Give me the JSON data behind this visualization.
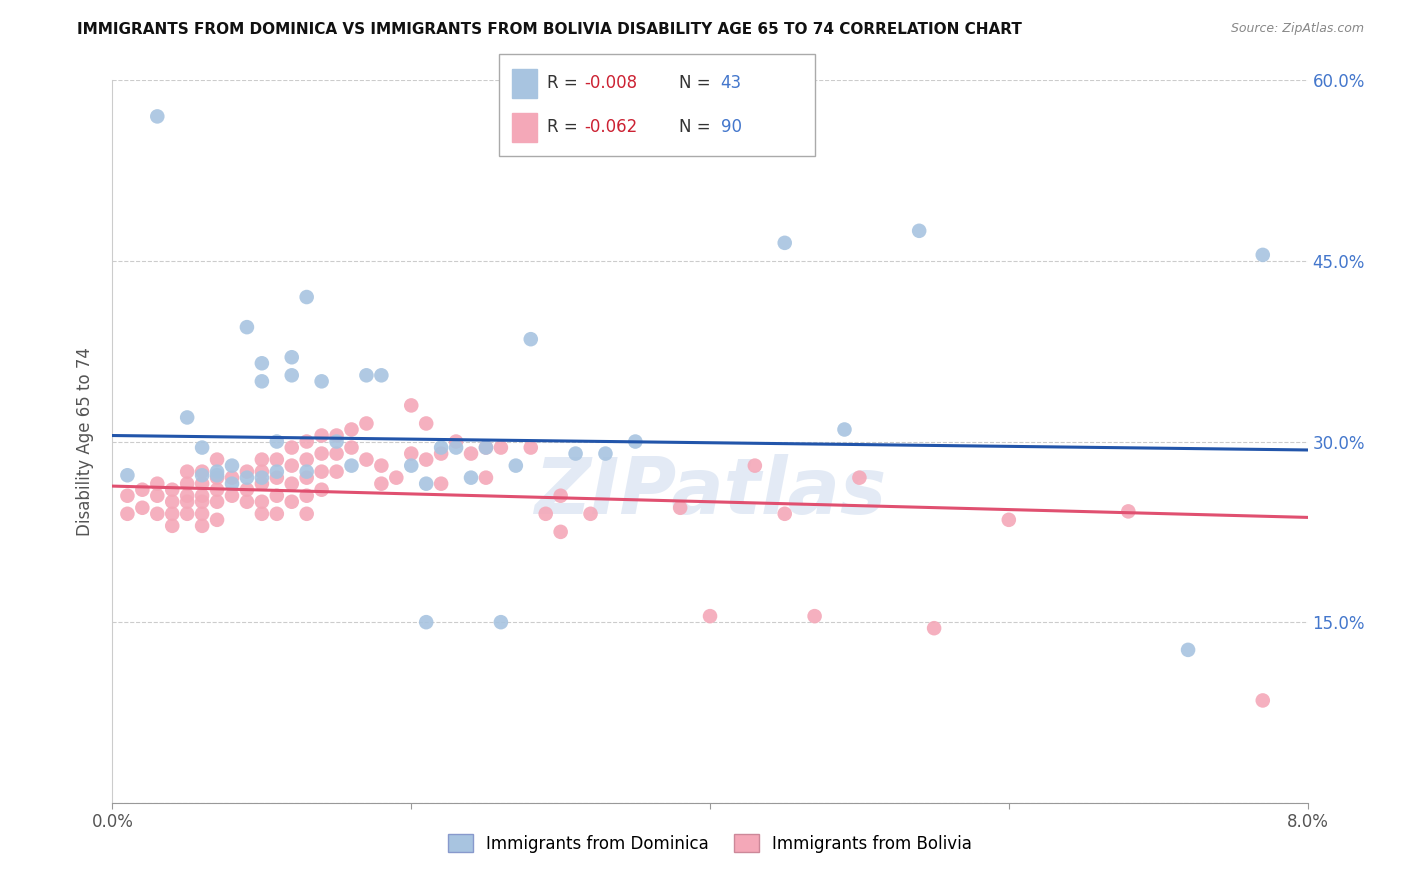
{
  "title": "IMMIGRANTS FROM DOMINICA VS IMMIGRANTS FROM BOLIVIA DISABILITY AGE 65 TO 74 CORRELATION CHART",
  "source": "Source: ZipAtlas.com",
  "ylabel": "Disability Age 65 to 74",
  "xlim": [
    0.0,
    0.08
  ],
  "ylim": [
    0.0,
    0.6
  ],
  "dominica_color": "#a8c4e0",
  "bolivia_color": "#f4a8b8",
  "dominica_line_color": "#2255aa",
  "bolivia_line_color": "#e05070",
  "dominica_R": "-0.008",
  "dominica_N": "43",
  "bolivia_R": "-0.062",
  "bolivia_N": "90",
  "legend_label_dominica": "Immigrants from Dominica",
  "legend_label_bolivia": "Immigrants from Bolivia",
  "watermark": "ZIPatlas",
  "dominica_x": [
    0.001,
    0.003,
    0.005,
    0.006,
    0.006,
    0.007,
    0.007,
    0.008,
    0.008,
    0.009,
    0.009,
    0.01,
    0.01,
    0.01,
    0.011,
    0.011,
    0.012,
    0.012,
    0.013,
    0.013,
    0.014,
    0.015,
    0.016,
    0.017,
    0.018,
    0.02,
    0.021,
    0.021,
    0.022,
    0.023,
    0.024,
    0.025,
    0.026,
    0.027,
    0.028,
    0.031,
    0.033,
    0.035,
    0.045,
    0.049,
    0.054,
    0.072,
    0.077
  ],
  "dominica_y": [
    0.272,
    0.57,
    0.32,
    0.295,
    0.272,
    0.275,
    0.272,
    0.28,
    0.265,
    0.395,
    0.27,
    0.365,
    0.35,
    0.27,
    0.3,
    0.275,
    0.37,
    0.355,
    0.42,
    0.275,
    0.35,
    0.3,
    0.28,
    0.355,
    0.355,
    0.28,
    0.265,
    0.15,
    0.295,
    0.295,
    0.27,
    0.295,
    0.15,
    0.28,
    0.385,
    0.29,
    0.29,
    0.3,
    0.465,
    0.31,
    0.475,
    0.127,
    0.455
  ],
  "bolivia_x": [
    0.001,
    0.001,
    0.002,
    0.002,
    0.003,
    0.003,
    0.003,
    0.004,
    0.004,
    0.004,
    0.004,
    0.005,
    0.005,
    0.005,
    0.005,
    0.005,
    0.006,
    0.006,
    0.006,
    0.006,
    0.006,
    0.006,
    0.007,
    0.007,
    0.007,
    0.007,
    0.007,
    0.008,
    0.008,
    0.009,
    0.009,
    0.009,
    0.01,
    0.01,
    0.01,
    0.01,
    0.01,
    0.011,
    0.011,
    0.011,
    0.011,
    0.012,
    0.012,
    0.012,
    0.012,
    0.013,
    0.013,
    0.013,
    0.013,
    0.013,
    0.014,
    0.014,
    0.014,
    0.014,
    0.015,
    0.015,
    0.015,
    0.016,
    0.016,
    0.017,
    0.017,
    0.018,
    0.018,
    0.019,
    0.02,
    0.02,
    0.021,
    0.021,
    0.022,
    0.022,
    0.023,
    0.024,
    0.025,
    0.025,
    0.026,
    0.028,
    0.029,
    0.03,
    0.03,
    0.032,
    0.038,
    0.04,
    0.043,
    0.045,
    0.047,
    0.05,
    0.055,
    0.06,
    0.068,
    0.077
  ],
  "bolivia_y": [
    0.255,
    0.24,
    0.26,
    0.245,
    0.265,
    0.255,
    0.24,
    0.26,
    0.25,
    0.24,
    0.23,
    0.275,
    0.265,
    0.255,
    0.25,
    0.24,
    0.275,
    0.265,
    0.255,
    0.25,
    0.24,
    0.23,
    0.285,
    0.27,
    0.26,
    0.25,
    0.235,
    0.27,
    0.255,
    0.275,
    0.26,
    0.25,
    0.285,
    0.275,
    0.265,
    0.25,
    0.24,
    0.285,
    0.27,
    0.255,
    0.24,
    0.295,
    0.28,
    0.265,
    0.25,
    0.3,
    0.285,
    0.27,
    0.255,
    0.24,
    0.305,
    0.29,
    0.275,
    0.26,
    0.305,
    0.29,
    0.275,
    0.31,
    0.295,
    0.315,
    0.285,
    0.28,
    0.265,
    0.27,
    0.33,
    0.29,
    0.315,
    0.285,
    0.29,
    0.265,
    0.3,
    0.29,
    0.295,
    0.27,
    0.295,
    0.295,
    0.24,
    0.255,
    0.225,
    0.24,
    0.245,
    0.155,
    0.28,
    0.24,
    0.155,
    0.27,
    0.145,
    0.235,
    0.242,
    0.085
  ],
  "dom_trend_x0": 0.0,
  "dom_trend_x1": 0.08,
  "dom_trend_y0": 0.305,
  "dom_trend_y1": 0.293,
  "bol_trend_x0": 0.0,
  "bol_trend_x1": 0.08,
  "bol_trend_y0": 0.263,
  "bol_trend_y1": 0.237
}
